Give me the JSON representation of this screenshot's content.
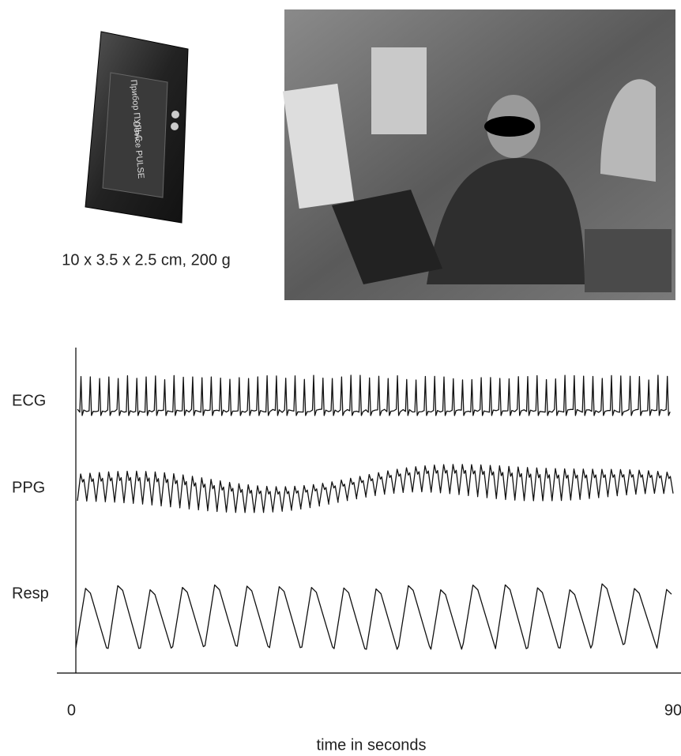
{
  "device": {
    "caption": "10 x 3.5 x 2.5 cm, 200 g",
    "labels": [
      "Прибор ПУЛЬС",
      "Device PULSE"
    ]
  },
  "recording": {
    "signals": [
      "ECG",
      "PPG",
      "Resp"
    ],
    "xlim": [
      0,
      90
    ],
    "xticks": [
      0,
      90
    ],
    "xlabel": "time in seconds"
  }
}
